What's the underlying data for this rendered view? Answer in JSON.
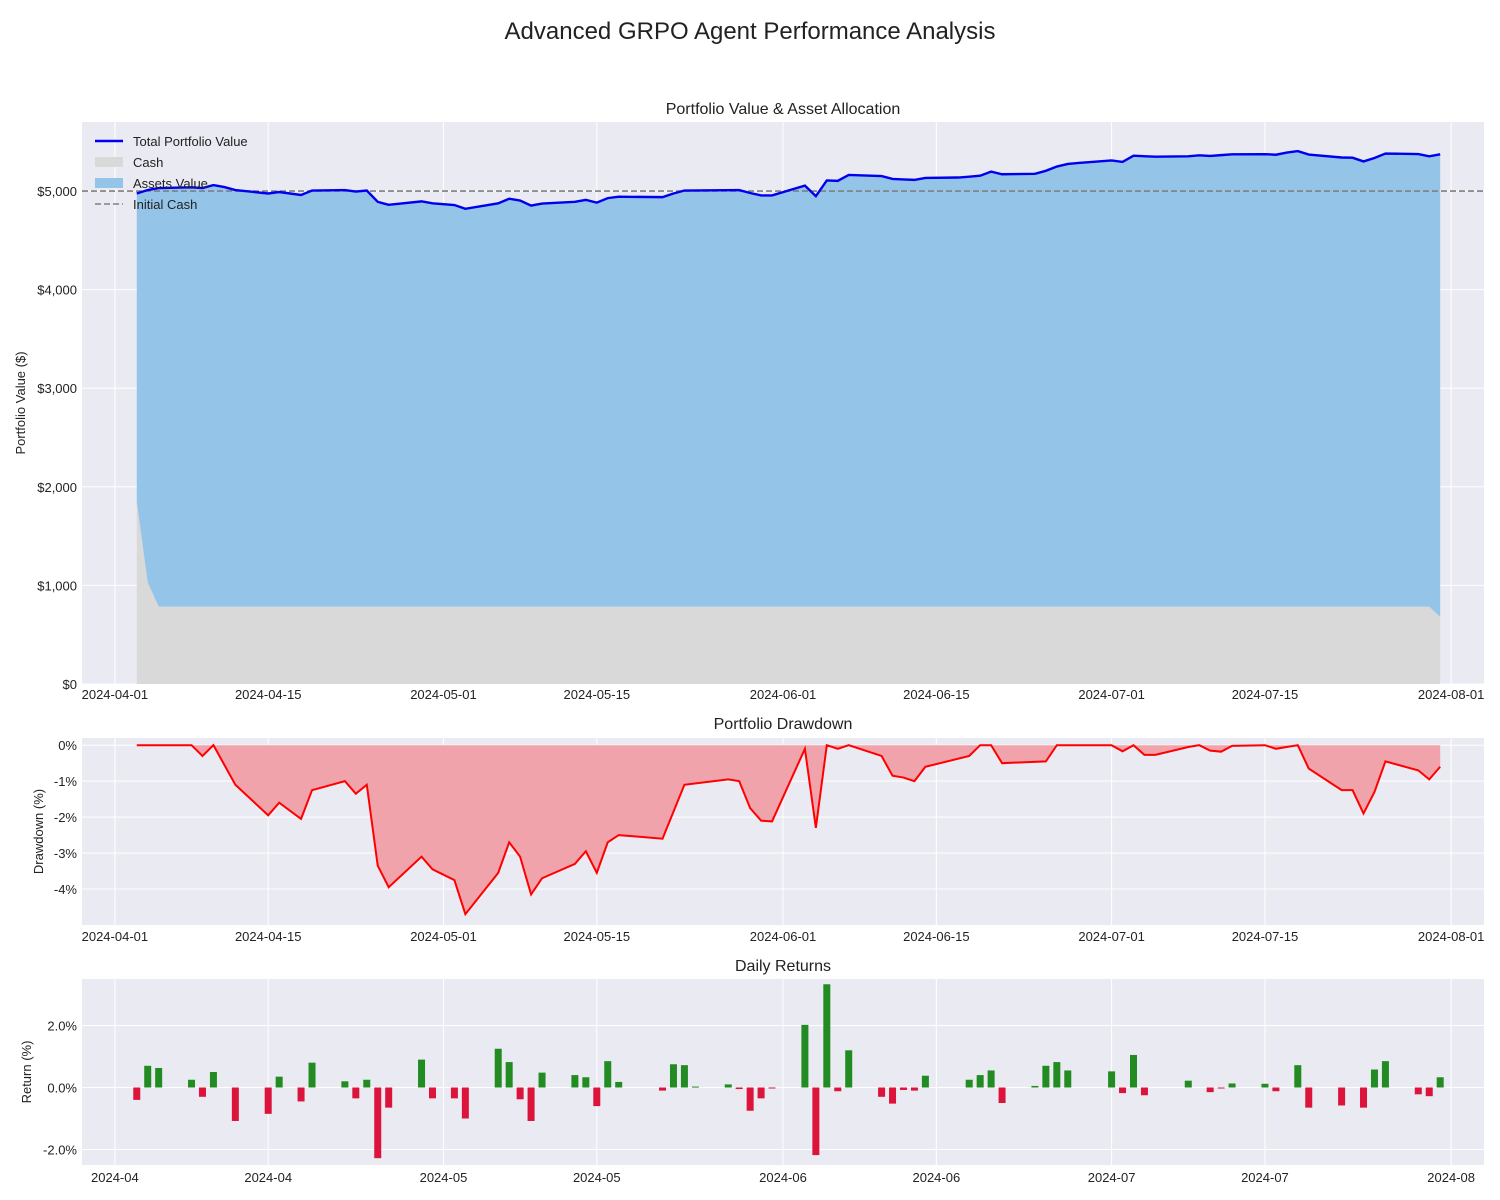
{
  "figure": {
    "title": "Advanced GRPO Agent Performance Analysis"
  },
  "colors": {
    "plot_bg": "#eaeaf2",
    "grid": "#ffffff",
    "total_line": "#0000ee",
    "cash_fill": "#d9d9d9",
    "assets_fill": "#94c4e8",
    "initial_line": "#808080",
    "drawdown_line": "#ff0000",
    "drawdown_fill": "#f0a3aa",
    "pos_bar": "#228b22",
    "neg_bar": "#dc143c"
  },
  "chart_data": [
    {
      "type": "area",
      "title": "Portfolio Value & Asset Allocation",
      "ylabel": "Portfolio Value ($)",
      "xlabel": "",
      "ylim": [
        0,
        5700
      ],
      "xlim": [
        "2024-03-29",
        "2024-08-04"
      ],
      "yticks": [
        0,
        1000,
        2000,
        3000,
        4000,
        5000
      ],
      "ytick_labels": [
        "$0",
        "$1,000",
        "$2,000",
        "$3,000",
        "$4,000",
        "$5,000"
      ],
      "xticks": [
        "2024-04-01",
        "2024-04-15",
        "2024-05-01",
        "2024-05-15",
        "2024-06-01",
        "2024-06-15",
        "2024-07-01",
        "2024-07-15",
        "2024-08-01"
      ],
      "grid": true,
      "legend_position": "top-left",
      "legend": [
        "Total Portfolio Value",
        "Cash",
        "Assets Value",
        "Initial Cash"
      ],
      "initial_cash": 5000,
      "total_value": [
        [
          "2024-04-03",
          4975
        ],
        [
          "2024-04-04",
          5010
        ],
        [
          "2024-04-05",
          5030
        ],
        [
          "2024-04-08",
          5038
        ],
        [
          "2024-04-09",
          5030
        ],
        [
          "2024-04-10",
          5060
        ],
        [
          "2024-04-11",
          5040
        ],
        [
          "2024-04-12",
          5010
        ],
        [
          "2024-04-15",
          4975
        ],
        [
          "2024-04-16",
          4990
        ],
        [
          "2024-04-18",
          4960
        ],
        [
          "2024-04-19",
          5005
        ],
        [
          "2024-04-22",
          5010
        ],
        [
          "2024-04-23",
          4995
        ],
        [
          "2024-04-24",
          5005
        ],
        [
          "2024-04-25",
          4890
        ],
        [
          "2024-04-26",
          4860
        ],
        [
          "2024-04-29",
          4895
        ],
        [
          "2024-04-30",
          4875
        ],
        [
          "2024-05-02",
          4858
        ],
        [
          "2024-05-03",
          4820
        ],
        [
          "2024-05-06",
          4875
        ],
        [
          "2024-05-07",
          4922
        ],
        [
          "2024-05-08",
          4903
        ],
        [
          "2024-05-09",
          4852
        ],
        [
          "2024-05-10",
          4873
        ],
        [
          "2024-05-13",
          4890
        ],
        [
          "2024-05-14",
          4910
        ],
        [
          "2024-05-15",
          4882
        ],
        [
          "2024-05-16",
          4928
        ],
        [
          "2024-05-17",
          4942
        ],
        [
          "2024-05-21",
          4938
        ],
        [
          "2024-05-22",
          4975
        ],
        [
          "2024-05-23",
          5005
        ],
        [
          "2024-05-28",
          5010
        ],
        [
          "2024-05-29",
          4980
        ],
        [
          "2024-05-30",
          4955
        ],
        [
          "2024-05-31",
          4955
        ],
        [
          "2024-06-03",
          5055
        ],
        [
          "2024-06-04",
          4948
        ],
        [
          "2024-06-05",
          5107
        ],
        [
          "2024-06-06",
          5103
        ],
        [
          "2024-06-07",
          5163
        ],
        [
          "2024-06-10",
          5152
        ],
        [
          "2024-06-11",
          5123
        ],
        [
          "2024-06-12",
          5117
        ],
        [
          "2024-06-13",
          5113
        ],
        [
          "2024-06-14",
          5133
        ],
        [
          "2024-06-17",
          5137
        ],
        [
          "2024-06-18",
          5145
        ],
        [
          "2024-06-19",
          5155
        ],
        [
          "2024-06-20",
          5197
        ],
        [
          "2024-06-21",
          5170
        ],
        [
          "2024-06-24",
          5175
        ],
        [
          "2024-06-25",
          5205
        ],
        [
          "2024-06-26",
          5248
        ],
        [
          "2024-06-27",
          5275
        ],
        [
          "2024-06-28",
          5285
        ],
        [
          "2024-07-01",
          5310
        ],
        [
          "2024-07-02",
          5295
        ],
        [
          "2024-07-03",
          5358
        ],
        [
          "2024-07-05",
          5348
        ],
        [
          "2024-07-08",
          5352
        ],
        [
          "2024-07-09",
          5362
        ],
        [
          "2024-07-10",
          5356
        ],
        [
          "2024-07-11",
          5364
        ],
        [
          "2024-07-12",
          5372
        ],
        [
          "2024-07-15",
          5374
        ],
        [
          "2024-07-16",
          5368
        ],
        [
          "2024-07-17",
          5390
        ],
        [
          "2024-07-18",
          5405
        ],
        [
          "2024-07-19",
          5370
        ],
        [
          "2024-07-22",
          5340
        ],
        [
          "2024-07-23",
          5338
        ],
        [
          "2024-07-24",
          5300
        ],
        [
          "2024-07-25",
          5335
        ],
        [
          "2024-07-26",
          5380
        ],
        [
          "2024-07-29",
          5375
        ],
        [
          "2024-07-30",
          5352
        ],
        [
          "2024-07-31",
          5372
        ]
      ],
      "cash_value": [
        [
          "2024-04-03",
          1850
        ],
        [
          "2024-04-04",
          1030
        ],
        [
          "2024-04-05",
          785
        ],
        [
          "2024-07-30",
          785
        ],
        [
          "2024-07-31",
          680
        ]
      ]
    },
    {
      "type": "area",
      "title": "Portfolio Drawdown",
      "ylabel": "Drawdown (%)",
      "xlabel": "",
      "ylim": [
        -5,
        0.2
      ],
      "xlim": [
        "2024-03-29",
        "2024-08-04"
      ],
      "yticks": [
        0,
        -1,
        -2,
        -3,
        -4
      ],
      "ytick_labels": [
        "0%",
        "-1%",
        "-2%",
        "-3%",
        "-4%"
      ],
      "xticks": [
        "2024-04-01",
        "2024-04-15",
        "2024-05-01",
        "2024-05-15",
        "2024-06-01",
        "2024-06-15",
        "2024-07-01",
        "2024-07-15",
        "2024-08-01"
      ],
      "grid": true,
      "values": [
        [
          "2024-04-03",
          0
        ],
        [
          "2024-04-08",
          0
        ],
        [
          "2024-04-09",
          -0.3
        ],
        [
          "2024-04-10",
          0
        ],
        [
          "2024-04-12",
          -1.1
        ],
        [
          "2024-04-15",
          -1.95
        ],
        [
          "2024-04-16",
          -1.6
        ],
        [
          "2024-04-18",
          -2.05
        ],
        [
          "2024-04-19",
          -1.25
        ],
        [
          "2024-04-22",
          -1.0
        ],
        [
          "2024-04-23",
          -1.35
        ],
        [
          "2024-04-24",
          -1.1
        ],
        [
          "2024-04-25",
          -3.35
        ],
        [
          "2024-04-26",
          -3.95
        ],
        [
          "2024-04-29",
          -3.1
        ],
        [
          "2024-04-30",
          -3.45
        ],
        [
          "2024-05-02",
          -3.75
        ],
        [
          "2024-05-03",
          -4.7
        ],
        [
          "2024-05-06",
          -3.55
        ],
        [
          "2024-05-07",
          -2.7
        ],
        [
          "2024-05-08",
          -3.1
        ],
        [
          "2024-05-09",
          -4.15
        ],
        [
          "2024-05-10",
          -3.7
        ],
        [
          "2024-05-13",
          -3.3
        ],
        [
          "2024-05-14",
          -2.95
        ],
        [
          "2024-05-15",
          -3.55
        ],
        [
          "2024-05-16",
          -2.7
        ],
        [
          "2024-05-17",
          -2.5
        ],
        [
          "2024-05-21",
          -2.6
        ],
        [
          "2024-05-23",
          -1.1
        ],
        [
          "2024-05-27",
          -0.95
        ],
        [
          "2024-05-28",
          -1.0
        ],
        [
          "2024-05-29",
          -1.75
        ],
        [
          "2024-05-30",
          -2.1
        ],
        [
          "2024-05-31",
          -2.12
        ],
        [
          "2024-06-03",
          -0.1
        ],
        [
          "2024-06-04",
          -2.3
        ],
        [
          "2024-06-05",
          0
        ],
        [
          "2024-06-06",
          -0.1
        ],
        [
          "2024-06-07",
          0
        ],
        [
          "2024-06-10",
          -0.3
        ],
        [
          "2024-06-11",
          -0.85
        ],
        [
          "2024-06-12",
          -0.9
        ],
        [
          "2024-06-13",
          -1.0
        ],
        [
          "2024-06-14",
          -0.6
        ],
        [
          "2024-06-18",
          -0.3
        ],
        [
          "2024-06-19",
          0
        ],
        [
          "2024-06-20",
          0
        ],
        [
          "2024-06-21",
          -0.5
        ],
        [
          "2024-06-25",
          -0.45
        ],
        [
          "2024-06-26",
          0
        ],
        [
          "2024-07-01",
          0
        ],
        [
          "2024-07-02",
          -0.17
        ],
        [
          "2024-07-03",
          0
        ],
        [
          "2024-07-04",
          -0.27
        ],
        [
          "2024-07-05",
          -0.27
        ],
        [
          "2024-07-08",
          -0.05
        ],
        [
          "2024-07-09",
          0
        ],
        [
          "2024-07-10",
          -0.15
        ],
        [
          "2024-07-11",
          -0.18
        ],
        [
          "2024-07-12",
          -0.02
        ],
        [
          "2024-07-15",
          0
        ],
        [
          "2024-07-16",
          -0.1
        ],
        [
          "2024-07-18",
          0
        ],
        [
          "2024-07-19",
          -0.65
        ],
        [
          "2024-07-22",
          -1.25
        ],
        [
          "2024-07-23",
          -1.25
        ],
        [
          "2024-07-24",
          -1.9
        ],
        [
          "2024-07-25",
          -1.3
        ],
        [
          "2024-07-26",
          -0.45
        ],
        [
          "2024-07-29",
          -0.7
        ],
        [
          "2024-07-30",
          -0.95
        ],
        [
          "2024-07-31",
          -0.6
        ]
      ]
    },
    {
      "type": "bar",
      "title": "Daily Returns",
      "ylabel": "Return (%)",
      "xlabel": "",
      "ylim": [
        -2.5,
        3.5
      ],
      "xlim": [
        "2024-03-29",
        "2024-08-04"
      ],
      "yticks": [
        2.0,
        0.0,
        -2.0
      ],
      "ytick_labels": [
        "2.0%",
        "0.0%",
        "-2.0%"
      ],
      "xticks": [
        "2024-04-01",
        "2024-04-15",
        "2024-05-01",
        "2024-05-15",
        "2024-06-01",
        "2024-06-15",
        "2024-07-01",
        "2024-07-15",
        "2024-08-01"
      ],
      "xtick_labels": [
        "2024-04",
        "2024-04",
        "2024-05",
        "2024-05",
        "2024-06",
        "2024-06",
        "2024-07",
        "2024-07",
        "2024-08"
      ],
      "grid": true,
      "values": [
        [
          "2024-04-03",
          -0.4
        ],
        [
          "2024-04-04",
          0.7
        ],
        [
          "2024-04-05",
          0.63
        ],
        [
          "2024-04-08",
          0.25
        ],
        [
          "2024-04-09",
          -0.3
        ],
        [
          "2024-04-10",
          0.5
        ],
        [
          "2024-04-12",
          -1.08
        ],
        [
          "2024-04-15",
          -0.85
        ],
        [
          "2024-04-16",
          0.35
        ],
        [
          "2024-04-18",
          -0.45
        ],
        [
          "2024-04-19",
          0.8
        ],
        [
          "2024-04-22",
          0.2
        ],
        [
          "2024-04-23",
          -0.35
        ],
        [
          "2024-04-24",
          0.25
        ],
        [
          "2024-04-25",
          -2.28
        ],
        [
          "2024-04-26",
          -0.65
        ],
        [
          "2024-04-29",
          0.9
        ],
        [
          "2024-04-30",
          -0.35
        ],
        [
          "2024-05-02",
          -0.35
        ],
        [
          "2024-05-03",
          -1.0
        ],
        [
          "2024-05-06",
          1.25
        ],
        [
          "2024-05-07",
          0.82
        ],
        [
          "2024-05-08",
          -0.38
        ],
        [
          "2024-05-09",
          -1.08
        ],
        [
          "2024-05-10",
          0.48
        ],
        [
          "2024-05-13",
          0.4
        ],
        [
          "2024-05-14",
          0.33
        ],
        [
          "2024-05-15",
          -0.6
        ],
        [
          "2024-05-16",
          0.85
        ],
        [
          "2024-05-17",
          0.18
        ],
        [
          "2024-05-21",
          -0.1
        ],
        [
          "2024-05-22",
          0.75
        ],
        [
          "2024-05-23",
          0.72
        ],
        [
          "2024-05-24",
          0.03
        ],
        [
          "2024-05-27",
          0.1
        ],
        [
          "2024-05-28",
          -0.05
        ],
        [
          "2024-05-29",
          -0.75
        ],
        [
          "2024-05-30",
          -0.35
        ],
        [
          "2024-05-31",
          -0.03
        ],
        [
          "2024-06-03",
          2.02
        ],
        [
          "2024-06-04",
          -2.18
        ],
        [
          "2024-06-05",
          3.33
        ],
        [
          "2024-06-06",
          -0.12
        ],
        [
          "2024-06-07",
          1.2
        ],
        [
          "2024-06-10",
          -0.3
        ],
        [
          "2024-06-11",
          -0.52
        ],
        [
          "2024-06-12",
          -0.08
        ],
        [
          "2024-06-13",
          -0.1
        ],
        [
          "2024-06-14",
          0.38
        ],
        [
          "2024-06-18",
          0.25
        ],
        [
          "2024-06-19",
          0.4
        ],
        [
          "2024-06-20",
          0.55
        ],
        [
          "2024-06-21",
          -0.5
        ],
        [
          "2024-06-24",
          0.05
        ],
        [
          "2024-06-25",
          0.7
        ],
        [
          "2024-06-26",
          0.82
        ],
        [
          "2024-06-27",
          0.55
        ],
        [
          "2024-07-01",
          0.52
        ],
        [
          "2024-07-02",
          -0.18
        ],
        [
          "2024-07-03",
          1.05
        ],
        [
          "2024-07-04",
          -0.25
        ],
        [
          "2024-07-08",
          0.22
        ],
        [
          "2024-07-10",
          -0.15
        ],
        [
          "2024-07-11",
          -0.03
        ],
        [
          "2024-07-12",
          0.13
        ],
        [
          "2024-07-15",
          0.12
        ],
        [
          "2024-07-16",
          -0.12
        ],
        [
          "2024-07-18",
          0.72
        ],
        [
          "2024-07-19",
          -0.65
        ],
        [
          "2024-07-22",
          -0.58
        ],
        [
          "2024-07-24",
          -0.65
        ],
        [
          "2024-07-25",
          0.58
        ],
        [
          "2024-07-26",
          0.85
        ],
        [
          "2024-07-29",
          -0.22
        ],
        [
          "2024-07-30",
          -0.28
        ],
        [
          "2024-07-31",
          0.33
        ]
      ]
    }
  ]
}
